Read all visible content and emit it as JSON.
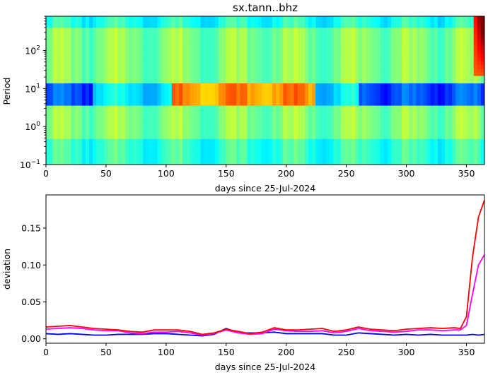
{
  "title": "sx.tann..bhz",
  "chart_data": [
    {
      "type": "heatmap",
      "title": "sx.tann..bhz",
      "xlabel": "days since 25-Jul-2024",
      "ylabel": "Period",
      "xlim": [
        0,
        365
      ],
      "ylim": [
        0.1,
        800
      ],
      "yscale": "log",
      "xticks": [
        0,
        50,
        100,
        150,
        200,
        250,
        300,
        350
      ],
      "yticks": [
        {
          "value": 0.1,
          "label": "10",
          "exp": "−1"
        },
        {
          "value": 1,
          "label": "10",
          "exp": "0"
        },
        {
          "value": 10,
          "label": "10",
          "exp": "1"
        },
        {
          "value": 100,
          "label": "10",
          "exp": "2"
        }
      ],
      "colormap": "jet",
      "description_features": {
        "low_band_period_range": [
          4,
          15
        ],
        "low_band_days": [
          0,
          40,
          260,
          365
        ],
        "high_band_days": [
          105,
          225
        ],
        "high_anomaly_days": [
          355,
          365
        ],
        "high_anomaly_period_min": 20
      }
    },
    {
      "type": "line",
      "xlabel": "days since 25-Jul-2024",
      "ylabel": "deviation",
      "xlim": [
        0,
        365
      ],
      "ylim": [
        -0.006,
        0.195
      ],
      "xticks": [
        0,
        50,
        100,
        150,
        200,
        250,
        300,
        350
      ],
      "yticks": [
        0.0,
        0.05,
        0.1,
        0.15
      ],
      "ytick_labels": [
        "0.00",
        "0.05",
        "0.10",
        "0.15"
      ],
      "x": [
        0,
        10,
        20,
        30,
        40,
        50,
        60,
        70,
        80,
        90,
        100,
        110,
        120,
        130,
        140,
        150,
        160,
        170,
        180,
        190,
        200,
        210,
        220,
        230,
        240,
        250,
        260,
        270,
        280,
        290,
        300,
        310,
        320,
        330,
        340,
        345,
        350,
        355,
        360,
        365
      ],
      "series": [
        {
          "color": "#0000ff",
          "values": [
            0.007,
            0.006,
            0.007,
            0.006,
            0.005,
            0.005,
            0.006,
            0.006,
            0.006,
            0.007,
            0.007,
            0.006,
            0.005,
            0.004,
            0.006,
            0.014,
            0.008,
            0.008,
            0.008,
            0.009,
            0.007,
            0.007,
            0.007,
            0.007,
            0.005,
            0.005,
            0.008,
            0.007,
            0.006,
            0.005,
            0.006,
            0.005,
            0.006,
            0.005,
            0.005,
            0.005,
            0.005,
            0.006,
            0.005,
            0.006
          ]
        },
        {
          "color": "#ff00ff",
          "values": [
            0.013,
            0.014,
            0.015,
            0.014,
            0.012,
            0.011,
            0.011,
            0.008,
            0.007,
            0.009,
            0.009,
            0.01,
            0.008,
            0.005,
            0.007,
            0.012,
            0.008,
            0.006,
            0.007,
            0.013,
            0.011,
            0.01,
            0.01,
            0.011,
            0.008,
            0.01,
            0.014,
            0.011,
            0.01,
            0.009,
            0.01,
            0.012,
            0.012,
            0.011,
            0.012,
            0.012,
            0.018,
            0.06,
            0.1,
            0.114
          ]
        },
        {
          "color": "#ff0000",
          "values": [
            0.016,
            0.017,
            0.018,
            0.016,
            0.014,
            0.013,
            0.012,
            0.01,
            0.009,
            0.012,
            0.012,
            0.012,
            0.01,
            0.006,
            0.008,
            0.013,
            0.01,
            0.007,
            0.009,
            0.015,
            0.012,
            0.012,
            0.013,
            0.014,
            0.01,
            0.012,
            0.016,
            0.013,
            0.012,
            0.011,
            0.013,
            0.014,
            0.015,
            0.014,
            0.015,
            0.014,
            0.03,
            0.11,
            0.165,
            0.188
          ]
        }
      ]
    }
  ]
}
